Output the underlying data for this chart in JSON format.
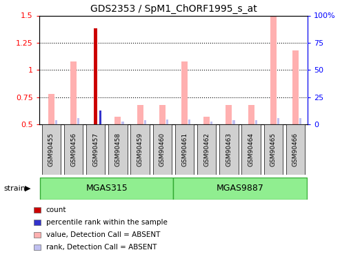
{
  "title": "GDS2353 / SpM1_ChORF1995_s_at",
  "samples": [
    "GSM90455",
    "GSM90456",
    "GSM90457",
    "GSM90458",
    "GSM90459",
    "GSM90460",
    "GSM90461",
    "GSM90462",
    "GSM90463",
    "GSM90464",
    "GSM90465",
    "GSM90466"
  ],
  "strains": [
    {
      "label": "MGAS315",
      "start": 0,
      "end": 6
    },
    {
      "label": "MGAS9887",
      "start": 6,
      "end": 12
    }
  ],
  "ylim_left": [
    0.5,
    1.5
  ],
  "ylim_right": [
    0,
    100
  ],
  "yticks_left": [
    0.5,
    0.75,
    1.0,
    1.25,
    1.5
  ],
  "ytick_labels_left": [
    "0.5",
    "0.75",
    "1",
    "1.25",
    "1.5"
  ],
  "yticks_right": [
    0,
    25,
    50,
    75,
    100
  ],
  "ytick_labels_right": [
    "0",
    "25",
    "50",
    "75",
    "100%"
  ],
  "count_bar_index": 2,
  "count_bar_value": 1.38,
  "count_bar_color": "#cc0000",
  "rank_bar_index": 2,
  "rank_bar_value": 0.625,
  "rank_bar_color": "#3333cc",
  "value_absent": [
    0.78,
    1.08,
    0.0,
    0.57,
    0.68,
    0.68,
    1.08,
    0.57,
    0.68,
    0.68,
    1.5,
    1.18
  ],
  "rank_absent": [
    0.535,
    0.555,
    0.0,
    0.523,
    0.535,
    0.542,
    0.545,
    0.523,
    0.535,
    0.535,
    0.555,
    0.555
  ],
  "pink_color": "#ffb0b0",
  "lavender_color": "#c0c0f0",
  "green_fill": "#90ee90",
  "green_edge": "#33aa33",
  "gray_bg": "#d0d0d0",
  "legend_items": [
    {
      "color": "#cc0000",
      "label": "count"
    },
    {
      "color": "#3333cc",
      "label": "percentile rank within the sample"
    },
    {
      "color": "#ffb0b0",
      "label": "value, Detection Call = ABSENT"
    },
    {
      "color": "#c0c0f0",
      "label": "rank, Detection Call = ABSENT"
    }
  ]
}
